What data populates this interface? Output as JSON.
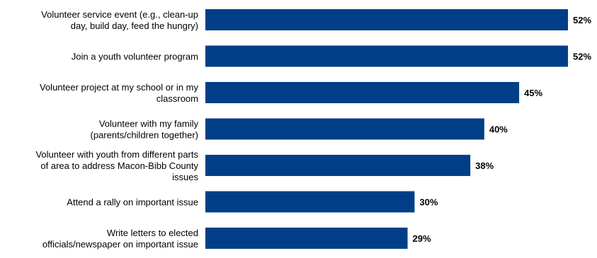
{
  "chart_data": {
    "type": "bar",
    "orientation": "horizontal",
    "categories": [
      [
        "Volunteer service event (e.g., clean-up",
        "day, build day, feed the hungry)"
      ],
      [
        "Join a youth volunteer program"
      ],
      [
        "Volunteer project at my school or in my",
        "classroom"
      ],
      [
        "Volunteer with my family",
        "(parents/children together)"
      ],
      [
        "Volunteer with youth from different parts",
        "of area to address Macon-Bibb County",
        "issues"
      ],
      [
        "Attend a rally on important issue"
      ],
      [
        "Write letters to elected",
        "officials/newspaper on important issue"
      ]
    ],
    "values": [
      52,
      52,
      45,
      40,
      38,
      30,
      29
    ],
    "value_labels": [
      "52%",
      "52%",
      "45%",
      "40%",
      "38%",
      "30%",
      "29%"
    ],
    "unit": "%",
    "xlim": [
      0,
      52
    ],
    "grid": false,
    "legend": "none",
    "title": "",
    "xlabel": "",
    "ylabel": "",
    "bar_color": "#003f87"
  }
}
